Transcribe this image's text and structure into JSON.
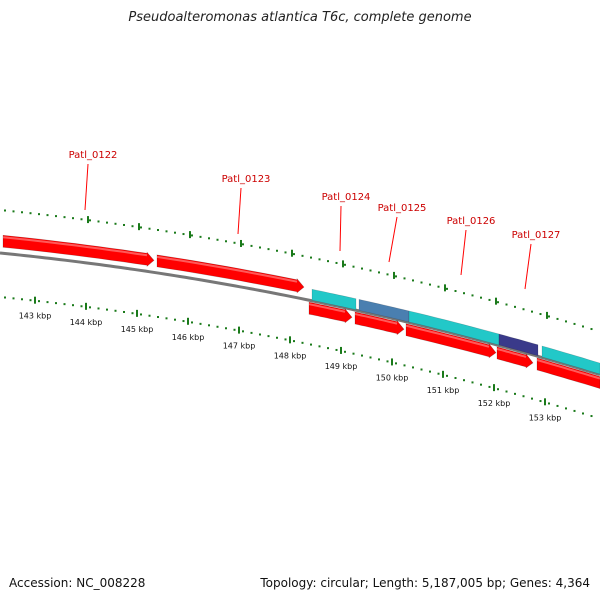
{
  "title": "Pseudoalteromonas atlantica T6c, complete genome",
  "accession": "Accession: NC_008228",
  "summary": "Topology: circular; Length: 5,187,005 bp; Genes: 4,364",
  "colors": {
    "red": "#ff0000",
    "cyan": "#22c8c8",
    "steel": "#4a7fb0",
    "navy": "#3a3a8a",
    "green": "#1a7a1a",
    "backbone": "#777777"
  },
  "scale": {
    "labels": [
      "143 kbp",
      "144 kbp",
      "145 kbp",
      "146 kbp",
      "147 kbp",
      "148 kbp",
      "149 kbp",
      "150 kbp",
      "151 kbp",
      "152 kbp",
      "153 kbp"
    ]
  },
  "genes": [
    {
      "label": "Patl_0122"
    },
    {
      "label": "Patl_0123"
    },
    {
      "label": "Patl_0124"
    },
    {
      "label": "Patl_0125"
    },
    {
      "label": "Patl_0126"
    },
    {
      "label": "Patl_0127"
    }
  ]
}
